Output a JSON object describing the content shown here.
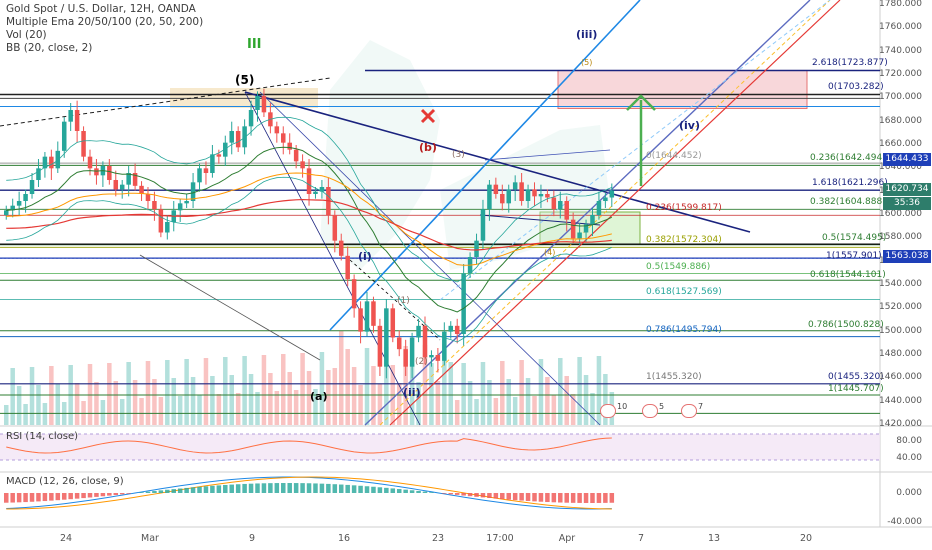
{
  "header": {
    "symbol_title": "Gold Spot / U.S. Dollar, 12H, OANDA",
    "indicators": [
      "Multiple Ema 20/50/100 (20, 50, 200)",
      "Vol (20)",
      "BB (20, close, 2)"
    ]
  },
  "panes": {
    "rsi_label": "RSI (14, close)",
    "macd_label": "MACD (12, 26, close, 9)"
  },
  "price_axis": {
    "ticks": [
      "1780.000",
      "1760.000",
      "1740.000",
      "1720.000",
      "1700.000",
      "1680.000",
      "1660.000",
      "1640.000",
      "1620.000",
      "1600.000",
      "1580.000",
      "1560.000",
      "1540.000",
      "1520.000",
      "1500.000",
      "1480.000",
      "1460.000",
      "1440.000",
      "1420.000"
    ],
    "rsi_ticks": [
      "80.00",
      "40.00"
    ],
    "macd_ticks": [
      "0.000",
      "-40.000"
    ],
    "tags": [
      {
        "text": "1644.433",
        "color": "#1e3fb8"
      },
      {
        "text": "1620.734",
        "color": "#2e7d6b"
      },
      {
        "text": "35:36",
        "color": "#2e7d6b"
      },
      {
        "text": "1563.038",
        "color": "#1e3fb8"
      }
    ]
  },
  "time_axis": {
    "ticks": [
      "24",
      "Mar",
      "9",
      "16",
      "23",
      "17:00",
      "Apr",
      "7",
      "13",
      "20"
    ]
  },
  "wave_labels": {
    "iii_green": "III",
    "five_top": "(5)",
    "b_wave": "(b)",
    "three": "(3)",
    "one_i": "(i)",
    "one": "(1)",
    "two": "(2)",
    "a_wave": "(a)",
    "ii_wave": "(ii)",
    "iii_wave": "(iii)",
    "iv_wave": "(iv)",
    "five_small": "(5)",
    "four_small": "(4)"
  },
  "fib_labels": [
    {
      "text": "2.618(1723.877)",
      "color": "#1a237e"
    },
    {
      "text": "0(1703.282)",
      "color": "#1a237e"
    },
    {
      "text": "0(1644.452)",
      "color": "#999999"
    },
    {
      "text": "0.236(1642.494)",
      "color": "#2e7d32"
    },
    {
      "text": "1.618(1621.296)",
      "color": "#1a237e"
    },
    {
      "text": "0.236(1599.817)",
      "color": "#c62828"
    },
    {
      "text": "0.382(1604.888)",
      "color": "#2e7d32"
    },
    {
      "text": "0.382(1572.304)",
      "color": "#9aa000"
    },
    {
      "text": "0.5(1574.495)",
      "color": "#2e7d32"
    },
    {
      "text": "1(1557.901)",
      "color": "#1a237e"
    },
    {
      "text": "0.5(1549.886)",
      "color": "#4caf50"
    },
    {
      "text": "0.618(1544.101)",
      "color": "#2e7d32"
    },
    {
      "text": "0.618(1527.569)",
      "color": "#26a69a"
    },
    {
      "text": "0.786(1495.794)",
      "color": "#1565c0"
    },
    {
      "text": "0.786(1500.828)",
      "color": "#2e7d32"
    },
    {
      "text": "1(1455.320)",
      "color": "#777777"
    },
    {
      "text": "0(1455.320)",
      "color": "#1a237e"
    },
    {
      "text": "1(1445.707)",
      "color": "#2e7d32"
    }
  ],
  "event_badges": [
    "10",
    "5",
    "7"
  ],
  "colors": {
    "bull": "#26a69a",
    "bear": "#ef5350",
    "accent_blue": "#1e3fb8",
    "target_arrow": "#4caf50",
    "target_zone": "#f8d7da"
  },
  "chart_data": {
    "type": "candlestick",
    "symbol": "XAUUSD",
    "interval": "12H",
    "ylim": [
      1420,
      1785
    ],
    "closes": [
      1604,
      1608,
      1612,
      1618,
      1630,
      1640,
      1650,
      1640,
      1655,
      1680,
      1690,
      1672,
      1650,
      1640,
      1634,
      1642,
      1630,
      1622,
      1626,
      1636,
      1625,
      1618,
      1612,
      1605,
      1585,
      1594,
      1604,
      1610,
      1612,
      1628,
      1640,
      1636,
      1652,
      1650,
      1662,
      1672,
      1658,
      1676,
      1690,
      1702,
      1688,
      1676,
      1670,
      1662,
      1656,
      1646,
      1640,
      1618,
      1620,
      1624,
      1600,
      1578,
      1565,
      1545,
      1520,
      1500,
      1526,
      1505,
      1470,
      1520,
      1495,
      1485,
      1470,
      1495,
      1505,
      1478,
      1480,
      1475,
      1500,
      1505,
      1498,
      1550,
      1564,
      1578,
      1605,
      1626,
      1618,
      1610,
      1622,
      1628,
      1612,
      1622,
      1616,
      1618,
      1615,
      1605,
      1612,
      1596,
      1580,
      1585,
      1592,
      1600,
      1612,
      1615,
      1621
    ],
    "rsi_last": 56,
    "macd_last": 5,
    "key_levels": [
      1723.877,
      1703.282,
      1644.433,
      1620.734,
      1563.038
    ]
  }
}
